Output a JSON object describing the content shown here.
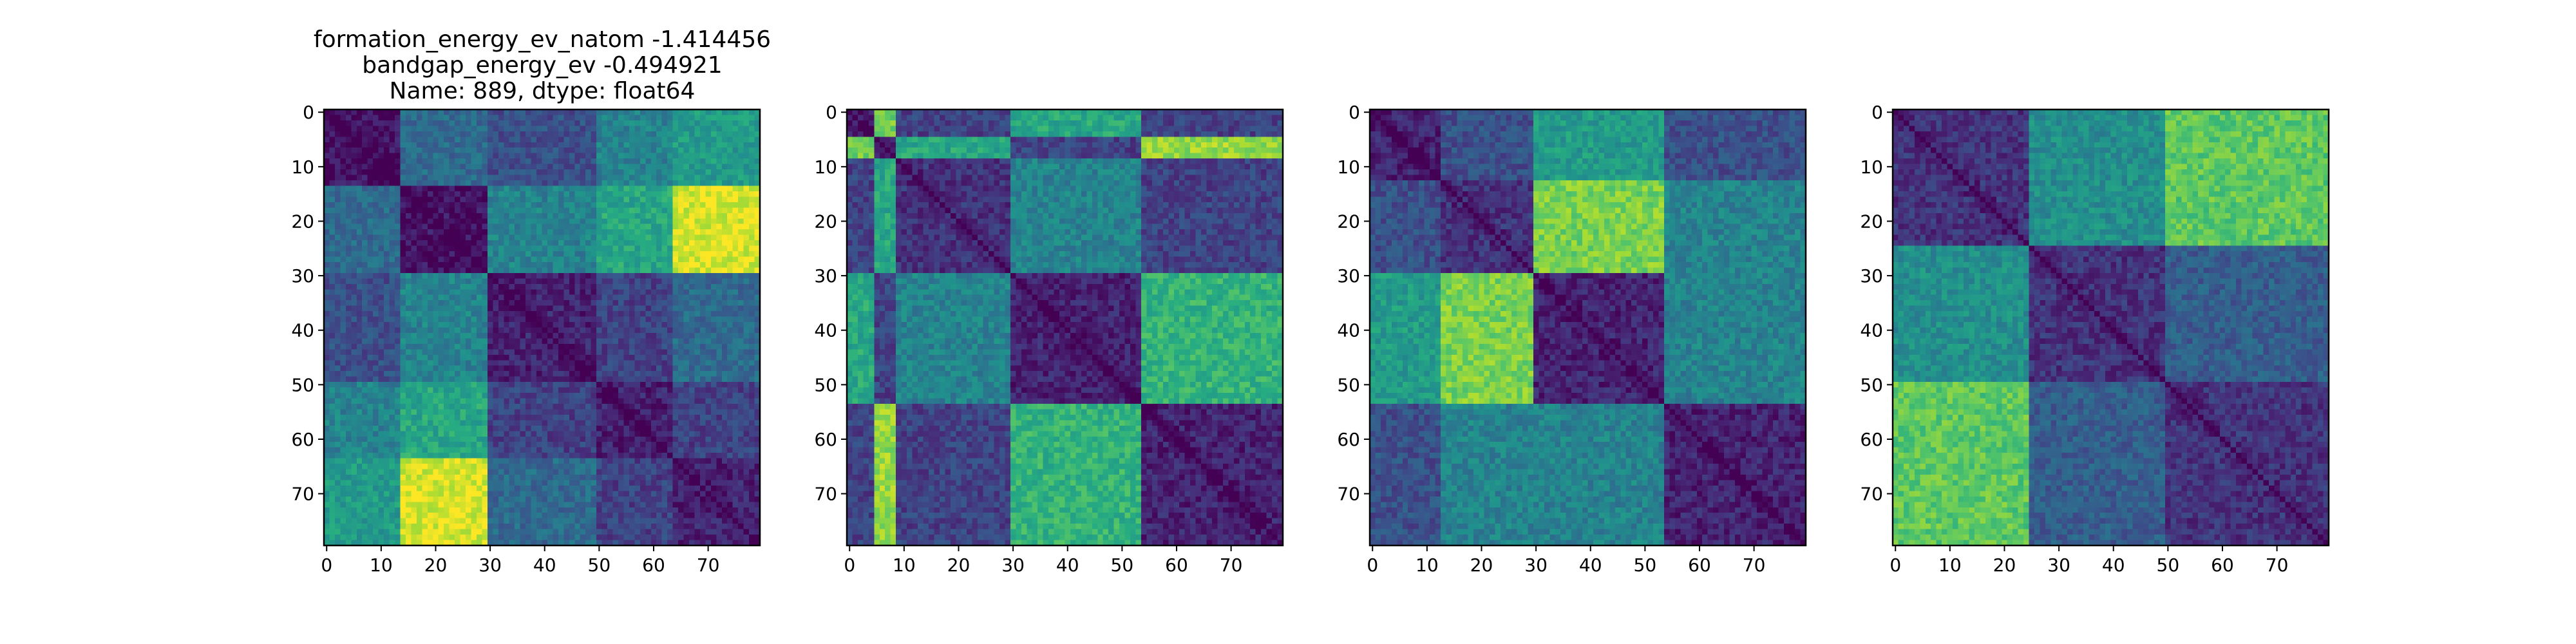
{
  "title": {
    "lines": [
      "formation_energy_ev_natom   -1.414456",
      "bandgap_energy_ev          -0.494921",
      "Name: 889, dtype: float64"
    ]
  },
  "chart_data": [
    {
      "type": "heatmap",
      "n": 80,
      "colormap": "viridis",
      "value_range": [
        0,
        1
      ],
      "xticks": [
        0,
        10,
        20,
        30,
        40,
        50,
        60,
        70
      ],
      "yticks": [
        0,
        10,
        20,
        30,
        40,
        50,
        60,
        70
      ],
      "xlim": [
        0,
        79
      ],
      "ylim": [
        79,
        0
      ],
      "block_boundaries": [
        0,
        14,
        30,
        50,
        64,
        80
      ],
      "block_values": [
        [
          0.05,
          0.35,
          0.25,
          0.45,
          0.55
        ],
        [
          0.35,
          0.05,
          0.45,
          0.6,
          0.95
        ],
        [
          0.25,
          0.45,
          0.1,
          0.2,
          0.35
        ],
        [
          0.45,
          0.6,
          0.2,
          0.1,
          0.2
        ],
        [
          0.55,
          0.95,
          0.35,
          0.2,
          0.1
        ]
      ]
    },
    {
      "type": "heatmap",
      "n": 80,
      "colormap": "viridis",
      "value_range": [
        0,
        1
      ],
      "xticks": [
        0,
        10,
        20,
        30,
        40,
        50,
        60,
        70
      ],
      "yticks": [
        0,
        10,
        20,
        30,
        40,
        50,
        60,
        70
      ],
      "xlim": [
        0,
        79
      ],
      "ylim": [
        79,
        0
      ],
      "block_boundaries": [
        0,
        5,
        9,
        30,
        54,
        80
      ],
      "block_values": [
        [
          0.1,
          0.8,
          0.2,
          0.6,
          0.2
        ],
        [
          0.8,
          0.05,
          0.6,
          0.2,
          0.85
        ],
        [
          0.2,
          0.6,
          0.15,
          0.45,
          0.2
        ],
        [
          0.6,
          0.2,
          0.45,
          0.1,
          0.65
        ],
        [
          0.2,
          0.85,
          0.2,
          0.65,
          0.1
        ]
      ]
    },
    {
      "type": "heatmap",
      "n": 80,
      "colormap": "viridis",
      "value_range": [
        0,
        1
      ],
      "xticks": [
        0,
        10,
        20,
        30,
        40,
        50,
        60,
        70
      ],
      "yticks": [
        0,
        10,
        20,
        30,
        40,
        50,
        60,
        70
      ],
      "xlim": [
        0,
        79
      ],
      "ylim": [
        79,
        0
      ],
      "block_boundaries": [
        0,
        13,
        30,
        54,
        80
      ],
      "block_values": [
        [
          0.1,
          0.25,
          0.55,
          0.25
        ],
        [
          0.25,
          0.15,
          0.8,
          0.45
        ],
        [
          0.55,
          0.8,
          0.1,
          0.45
        ],
        [
          0.25,
          0.45,
          0.45,
          0.1
        ]
      ]
    },
    {
      "type": "heatmap",
      "n": 80,
      "colormap": "viridis",
      "value_range": [
        0,
        1
      ],
      "xticks": [
        0,
        10,
        20,
        30,
        40,
        50,
        60,
        70
      ],
      "yticks": [
        0,
        10,
        20,
        30,
        40,
        50,
        60,
        70
      ],
      "xlim": [
        0,
        79
      ],
      "ylim": [
        79,
        0
      ],
      "block_boundaries": [
        0,
        25,
        50,
        80
      ],
      "block_values": [
        [
          0.15,
          0.5,
          0.75
        ],
        [
          0.5,
          0.15,
          0.3
        ],
        [
          0.75,
          0.3,
          0.15
        ]
      ]
    }
  ]
}
